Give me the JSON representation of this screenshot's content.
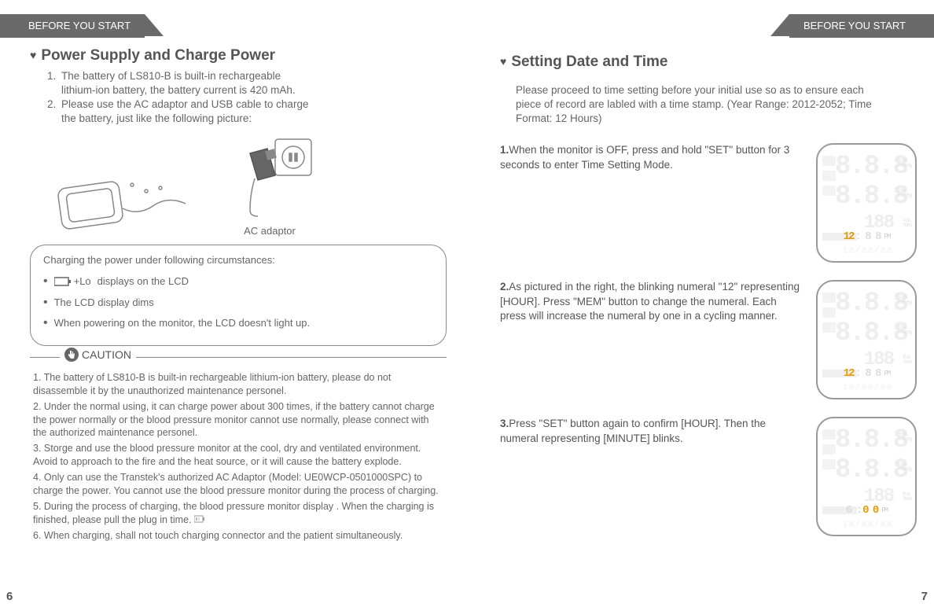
{
  "header": {
    "left": "BEFORE YOU START",
    "right": "BEFORE YOU START"
  },
  "left": {
    "title": "Power Supply and Charge Power",
    "intro": [
      {
        "n": "1.",
        "t": "The battery of LS810-B is built-in rechargeable\n lithium-ion battery, the battery current is 420 mAh."
      },
      {
        "n": "2.",
        "t": "Please use the AC adaptor and USB cable to charge\nthe battery, just like the following picture:"
      }
    ],
    "adaptor_label": "AC adaptor",
    "charge_hdr": "Charging the power under following circumstances:",
    "charge_items": [
      "displays on the LCD",
      "The LCD display dims",
      "When powering on the monitor, the LCD doesn't light up."
    ],
    "lo_text": "+Lo",
    "caution_label": "CAUTION",
    "caution": [
      "1. The battery of LS810-B is built-in rechargeable lithium-ion battery, please do not disassemble it by the unauthorized maintenance personel.",
      "2. Under the normal using, it can charge power about 300 times, if the battery cannot charge the power normally or the blood pressure monitor cannot use normally, please connect with the authorized maintenance personel.",
      "3. Storge and use the blood pressure monitor at the cool, dry and ventilated environment. Avoid to approach to the fire and the heat source, or it will cause the battery explode.",
      "4. Only can use the Transtek's  authorized AC Adaptor (Model: UE0WCP-0501000SPC) to charge the power. You cannot use the blood pressure monitor during the process of charging.",
      "5. During the process of charging, the blood pressure monitor display  .    When the charging is finished, please pull the plug in time.",
      "6. When charging, shall not touch charging connector and the patient simultaneously."
    ],
    "pagenum": "6"
  },
  "right": {
    "title": "Setting Date and Time",
    "intro": "Please proceed to time setting before your initial use so as to ensure each piece of record are labled with a time stamp. (Year Range: 2012-2052; Time Format: 12 Hours)",
    "steps": [
      {
        "n": "1.",
        "t": "When the monitor is OFF, press and hold \"SET\" button for 3 seconds to enter Time Setting Mode.",
        "hl": "12",
        "dim": ": 8 8",
        "minute_hl": false
      },
      {
        "n": "2.",
        "t": "As pictured in the right, the blinking numeral \"12\" representing [HOUR]. Press \"MEM\" button to change the numeral. Each press will increase the numeral by one in a cycling manner.",
        "hl": "12",
        "dim": ": 8 8",
        "minute_hl": false
      },
      {
        "n": "3.",
        "t": "Press \"SET\" button again to confirm [HOUR]. Then the numeral representing [MINUTE] blinks.",
        "hl": "0 0",
        "dim": "6 :",
        "minute_hl": true
      }
    ],
    "lcd": {
      "big": "8.8.8",
      "mid": "188",
      "sys": "SYS.\nmmHg",
      "dia": "DIA.\nmmHg",
      "pul": "Pul.\n/Min",
      "pm": "PM",
      "date": "1 8 / 8 8 / 8 8"
    },
    "pagenum": "7"
  }
}
